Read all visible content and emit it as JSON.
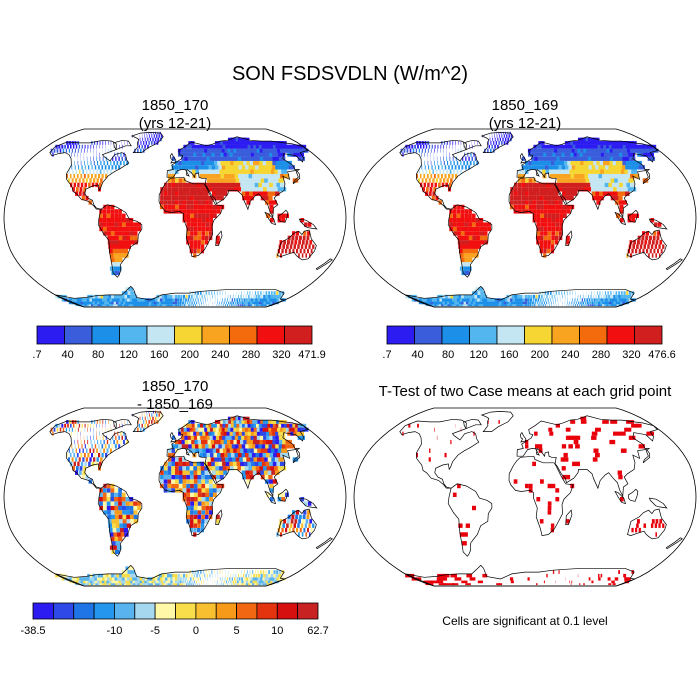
{
  "figure": {
    "title": "SON FSDSVDLN (W/m^2)",
    "note": "Cells are significant at 0.1 level"
  },
  "chart_data": [
    {
      "type": "heatmap",
      "projection": "Robinson",
      "title": "1850_170",
      "subtitle": "(yrs 12-21)",
      "colorbar": {
        "labels": [
          ".7",
          "40",
          "80",
          "120",
          "160",
          "200",
          "240",
          "280",
          "320",
          "471.9"
        ],
        "colors": [
          "#2d1cf2",
          "#3a5ddc",
          "#1c8fe8",
          "#54b6ef",
          "#c4e6f2",
          "#f6d633",
          "#f9a420",
          "#f36b0c",
          "#f20f0f",
          "#d11f1f"
        ]
      },
      "regions": [
        {
          "name": "arctic-land",
          "color_index": 0
        },
        {
          "name": "northern-midlatitudes",
          "color_index": 3
        },
        {
          "name": "subtropics",
          "color_index": 6
        },
        {
          "name": "tropics-deserts",
          "color_index": 8
        },
        {
          "name": "antarctica",
          "color_index": 2
        }
      ]
    },
    {
      "type": "heatmap",
      "projection": "Robinson",
      "title": "1850_169",
      "subtitle": "(yrs 12-21)",
      "colorbar": {
        "labels": [
          ".7",
          "40",
          "80",
          "120",
          "160",
          "200",
          "240",
          "280",
          "320",
          "476.6"
        ],
        "colors": [
          "#2d1cf2",
          "#3a5ddc",
          "#1c8fe8",
          "#54b6ef",
          "#c4e6f2",
          "#f6d633",
          "#f9a420",
          "#f36b0c",
          "#f20f0f",
          "#d11f1f"
        ]
      }
    },
    {
      "type": "heatmap",
      "projection": "Robinson",
      "title": "1850_170",
      "subtitle": "- 1850_169",
      "colorbar": {
        "labels": [
          "-38.5",
          "-10",
          "-5",
          "0",
          "5",
          "10",
          "62.7"
        ],
        "colors": [
          "#2d1cf2",
          "#2f49e8",
          "#1f74e6",
          "#2596ee",
          "#58b3ef",
          "#a6d9f0",
          "#fff8a6",
          "#f8de4a",
          "#f8c030",
          "#f79a1a",
          "#f26712",
          "#e3330f",
          "#d60f0f",
          "#c82222"
        ]
      }
    },
    {
      "type": "heatmap",
      "projection": "Robinson",
      "title": "T-Test of two Case means at each grid point",
      "significance_color": "#e8000b"
    }
  ]
}
